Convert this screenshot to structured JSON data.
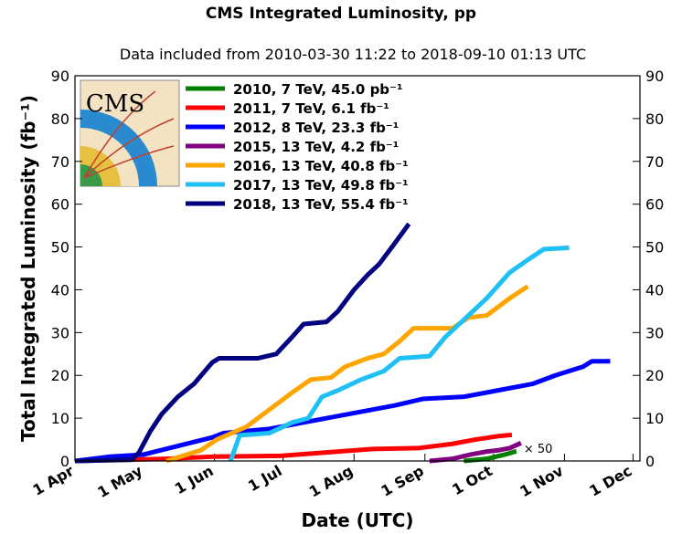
{
  "chart_data": {
    "type": "line",
    "title": "CMS Integrated Luminosity, pp",
    "subtitle": "Data included from 2010-03-30 11:22 to 2018-09-10 01:13 UTC",
    "x_label": "Date (UTC)",
    "y_label": "Total Integrated Luminosity (fb⁻¹)",
    "annotation": "× 50",
    "xlim": [
      0,
      247
    ],
    "xticks": [
      {
        "value": 0,
        "label": "1 Apr"
      },
      {
        "value": 30,
        "label": "1 May"
      },
      {
        "value": 61,
        "label": "1 Jun"
      },
      {
        "value": 91,
        "label": "1 Jul"
      },
      {
        "value": 122,
        "label": "1 Aug"
      },
      {
        "value": 153,
        "label": "1 Sep"
      },
      {
        "value": 183,
        "label": "1 Oct"
      },
      {
        "value": 214,
        "label": "1 Nov"
      },
      {
        "value": 244,
        "label": "1 Dec"
      }
    ],
    "ylim": [
      0,
      90
    ],
    "yticks": [
      0,
      10,
      20,
      30,
      40,
      50,
      60,
      70,
      80,
      90
    ],
    "y2lim": [
      0,
      90
    ],
    "y2ticks": [
      0,
      10,
      20,
      30,
      40,
      50,
      60,
      70,
      80,
      90
    ],
    "series": [
      {
        "name": "2010, 7 TeV, 45.0 pb⁻¹",
        "color": "#008000",
        "x": [
          170,
          180,
          188,
          193
        ],
        "values": [
          0,
          0.5,
          1.5,
          2.3
        ]
      },
      {
        "name": "2011, 7 TeV, 6.1 fb⁻¹",
        "color": "#ff0000",
        "x": [
          0,
          40,
          60,
          90,
          110,
          130,
          150,
          165,
          175,
          185,
          191
        ],
        "values": [
          0,
          0.5,
          1,
          1.2,
          2,
          2.8,
          3,
          4,
          5,
          5.8,
          6.1
        ]
      },
      {
        "name": "2012, 8 TeV, 23.3 fb⁻¹",
        "color": "#0000ff",
        "x": [
          0,
          15,
          30,
          45,
          60,
          65,
          85,
          100,
          120,
          140,
          152,
          170,
          185,
          200,
          210,
          222,
          226,
          234
        ],
        "values": [
          0,
          1,
          1.5,
          3.5,
          5.5,
          6.5,
          7.5,
          9,
          11,
          13,
          14.5,
          15,
          16.5,
          18,
          20,
          22,
          23.3,
          23.3
        ]
      },
      {
        "name": "2015, 13 TeV, 4.2 fb⁻¹",
        "color": "#800080",
        "x": [
          155,
          165,
          173,
          180,
          185,
          190,
          195
        ],
        "values": [
          0,
          0.5,
          1.5,
          2.2,
          2.5,
          3,
          4.2
        ]
      },
      {
        "name": "2016, 13 TeV, 40.8 fb⁻¹",
        "color": "#ffa500",
        "x": [
          40,
          55,
          62,
          75,
          85,
          95,
          103,
          112,
          118,
          128,
          135,
          142,
          148,
          165,
          172,
          180,
          190,
          198
        ],
        "values": [
          0,
          2.5,
          5,
          8,
          12,
          16,
          19,
          19.5,
          22,
          24,
          25,
          28,
          31,
          31,
          33.5,
          34,
          38,
          40.8
        ]
      },
      {
        "name": "2017, 13 TeV, 49.8 fb⁻¹",
        "color": "#1ec0f5",
        "x": [
          68,
          72,
          85,
          95,
          102,
          108,
          115,
          125,
          135,
          142,
          155,
          162,
          170,
          180,
          190,
          198,
          205,
          216
        ],
        "values": [
          0,
          6,
          6.5,
          9,
          10,
          15,
          16.5,
          19,
          21,
          24,
          24.5,
          29,
          33,
          38,
          44,
          47,
          49.5,
          49.8
        ]
      },
      {
        "name": "2018, 13 TeV, 55.4 fb⁻¹",
        "color": "#000080",
        "x": [
          0,
          25,
          28,
          33,
          38,
          45,
          52,
          60,
          63,
          80,
          88,
          95,
          100,
          110,
          115,
          122,
          128,
          133,
          140,
          146
        ],
        "values": [
          0,
          0.3,
          2,
          7,
          11,
          15,
          18,
          23,
          24,
          24,
          25,
          29,
          32,
          32.5,
          35,
          40,
          43.5,
          46,
          51,
          55.4
        ]
      }
    ]
  }
}
